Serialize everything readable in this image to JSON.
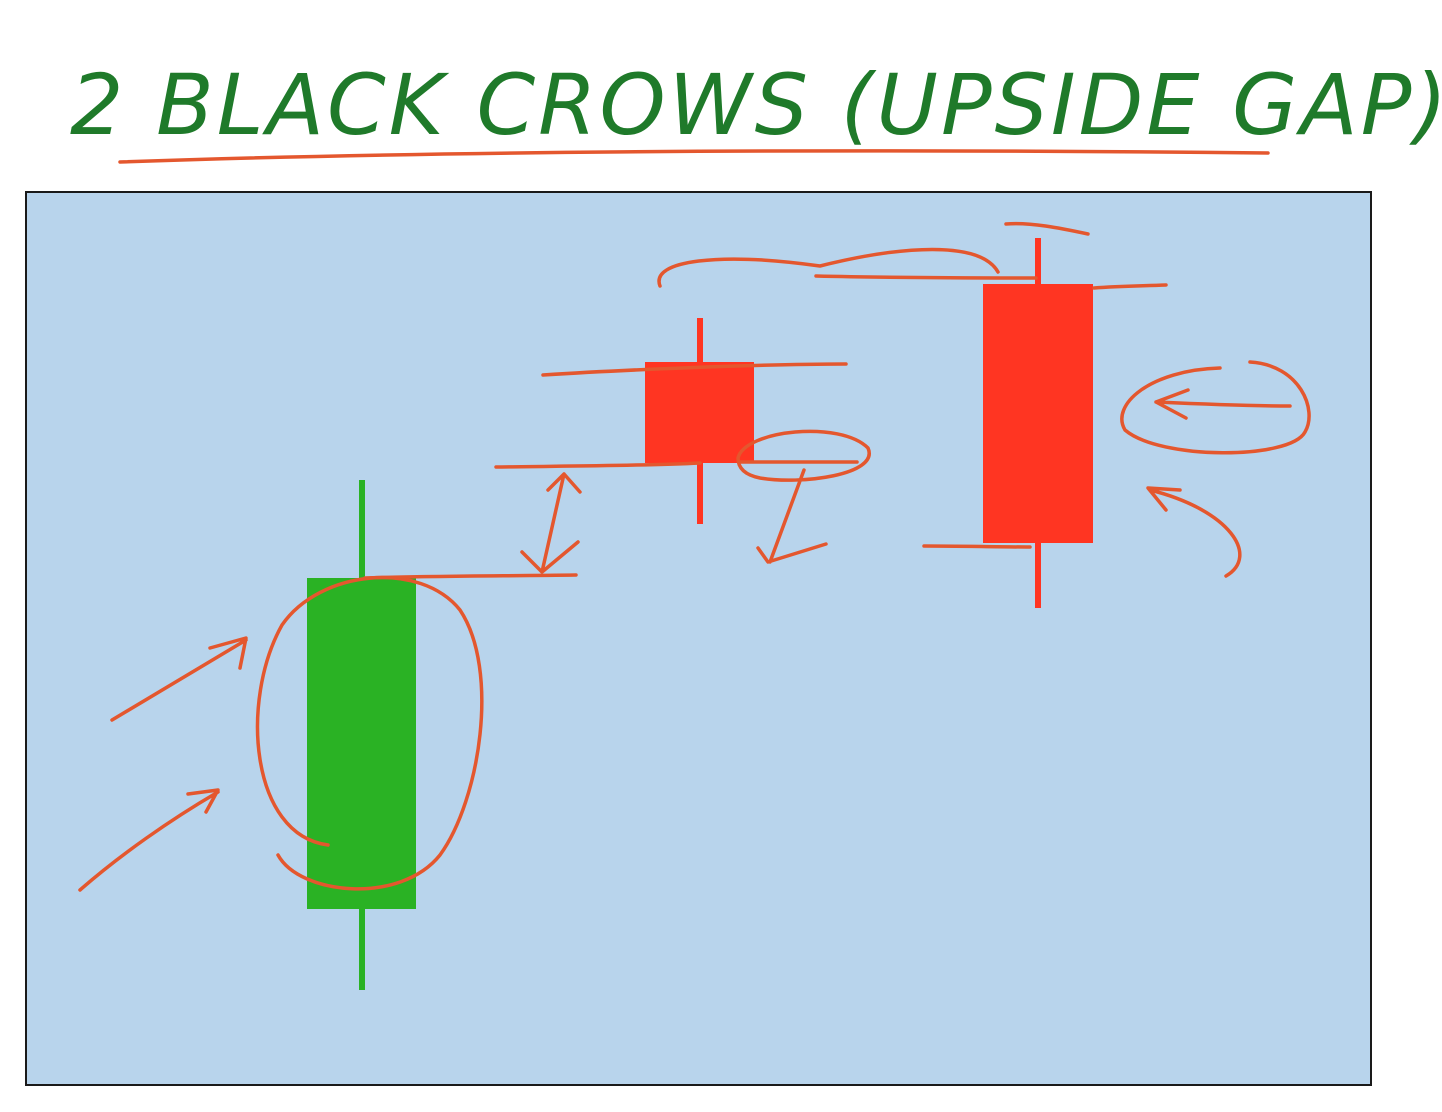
{
  "title": "2 BLACK CROWS (UPSIDE GAP)",
  "colors": {
    "title_ink": "#1f7a2a",
    "annotation_ink": "#e4572e",
    "panel_background": "#b8d4ec",
    "panel_border": "#1a1a1a",
    "bullish_candle": "#2ab224",
    "bearish_candle": "#ff3522"
  },
  "candles": [
    {
      "position": 1,
      "direction": "bullish",
      "color": "green"
    },
    {
      "position": 2,
      "direction": "bearish",
      "color": "red"
    },
    {
      "position": 3,
      "direction": "bearish",
      "color": "red"
    }
  ]
}
